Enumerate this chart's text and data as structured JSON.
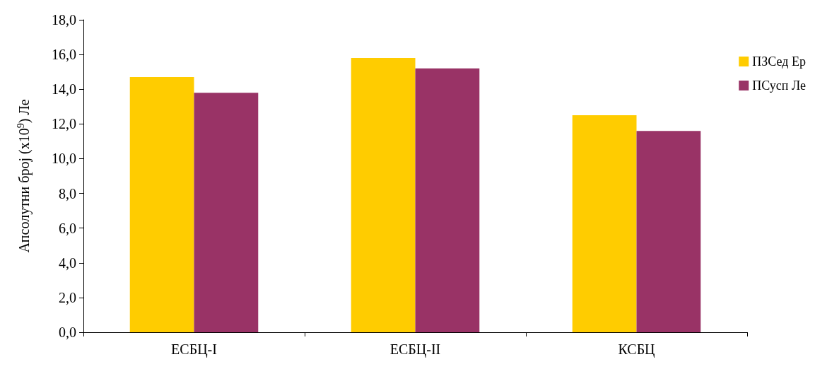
{
  "chart_data": {
    "type": "bar",
    "ylabel": "Апсолутни број (x10$^{9}$) Ле",
    "categories": [
      "ЕСБЦ-I",
      "ЕСБЦ-II",
      "КСБЦ"
    ],
    "series": [
      {
        "name": "ПЗСед Ер",
        "color": "#ffcc00",
        "values": [
          14.7,
          15.8,
          12.5
        ]
      },
      {
        "name": "ПСусп Ле",
        "color": "#993366",
        "values": [
          13.8,
          15.2,
          11.6
        ]
      }
    ],
    "ylim": [
      0,
      18
    ],
    "yticks": [
      {
        "value": 0,
        "label": "0,0"
      },
      {
        "value": 2,
        "label": "2,0"
      },
      {
        "value": 4,
        "label": "4,0"
      },
      {
        "value": 6,
        "label": "6,0"
      },
      {
        "value": 8,
        "label": "8,0"
      },
      {
        "value": 10,
        "label": "10,0"
      },
      {
        "value": 12,
        "label": "12,0"
      },
      {
        "value": 14,
        "label": "14,0"
      },
      {
        "value": 16,
        "label": "16,0"
      },
      {
        "value": 18,
        "label": "18,0"
      }
    ],
    "grid": false,
    "legend": "top right"
  }
}
